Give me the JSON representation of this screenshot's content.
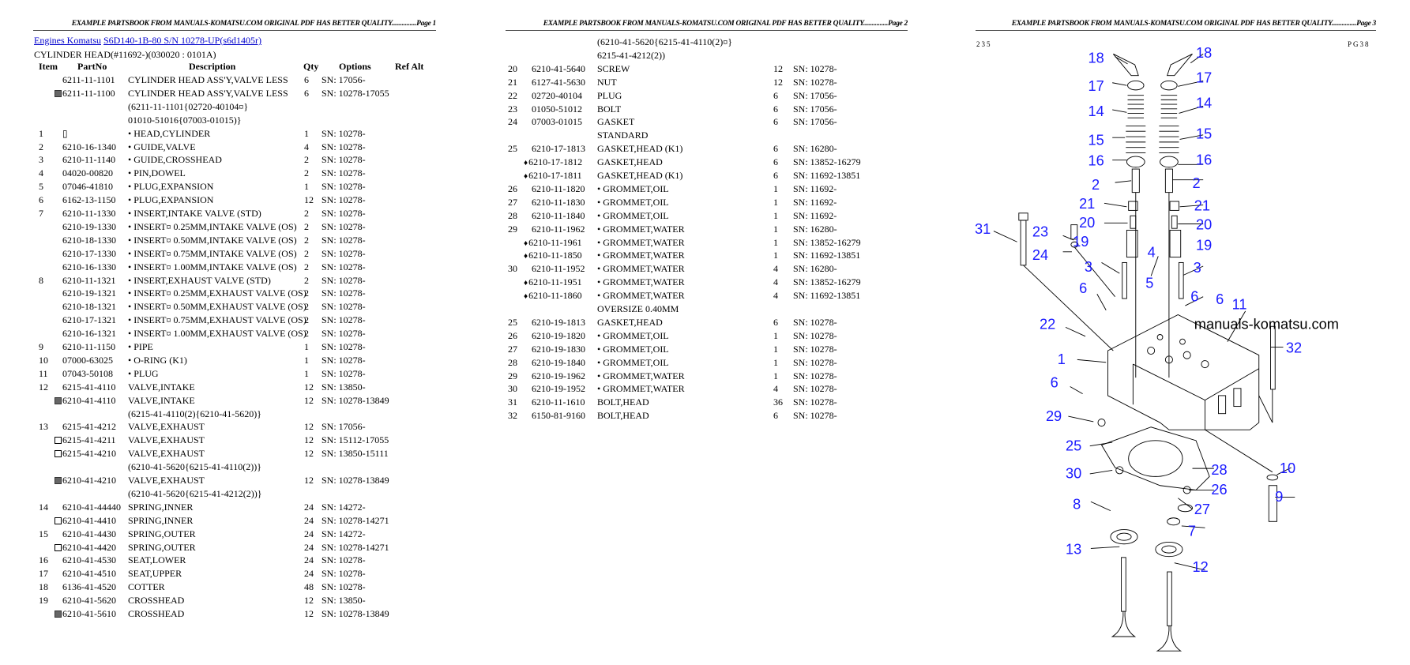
{
  "page_header_text": "EXAMPLE PARTSBOOK FROM MANUALS-KOMATSU.COM ORIGINAL PDF HAS BETTER QUALITY...............",
  "pages": [
    {
      "label": "Page 1"
    },
    {
      "label": "Page 2"
    },
    {
      "label": "Page 3"
    }
  ],
  "breadcrumb": {
    "link1": "Engines Komatsu",
    "link2": "S6D140-1B-80 S/N 10278-UP(s6d1405r)"
  },
  "section_title": "CYLINDER HEAD(#11692-)(030020 : 0101A)",
  "columns": {
    "item": "Item",
    "partno": "PartNo",
    "description": "Description",
    "qty": "Qty",
    "options": "Options",
    "refalt": "Ref Alt"
  },
  "page1_rows": [
    [
      "",
      "",
      "6211-11-1101",
      "CYLINDER HEAD ASS'Y,VALVE LESS",
      "6",
      "SN: 17056-"
    ],
    [
      "",
      "shaded",
      "6211-11-1100",
      "CYLINDER HEAD ASS'Y,VALVE LESS",
      "6",
      "SN: 10278-17055"
    ],
    [
      "",
      "",
      "",
      "(6211-11-1101{02720-40104¤}",
      "",
      ""
    ],
    [
      "",
      "",
      "",
      "01010-51016{07003-01015)}",
      "",
      ""
    ],
    [
      "1",
      "",
      "▯",
      "• HEAD,CYLINDER",
      "1",
      "SN: 10278-"
    ],
    [
      "2",
      "",
      "6210-16-1340",
      "• GUIDE,VALVE",
      "4",
      "SN: 10278-"
    ],
    [
      "3",
      "",
      "6210-11-1140",
      "• GUIDE,CROSSHEAD",
      "2",
      "SN: 10278-"
    ],
    [
      "4",
      "",
      "04020-00820",
      "• PIN,DOWEL",
      "2",
      "SN: 10278-"
    ],
    [
      "5",
      "",
      "07046-41810",
      "• PLUG,EXPANSION",
      "1",
      "SN: 10278-"
    ],
    [
      "6",
      "",
      "6162-13-1150",
      "• PLUG,EXPANSION",
      "12",
      "SN: 10278-"
    ],
    [
      "7",
      "",
      "6210-11-1330",
      "• INSERT,INTAKE VALVE (STD)",
      "2",
      "SN: 10278-"
    ],
    [
      "",
      "",
      "6210-19-1330",
      "• INSERT¤ 0.25MM,INTAKE VALVE (OS)",
      "2",
      "SN: 10278-"
    ],
    [
      "",
      "",
      "6210-18-1330",
      "• INSERT¤ 0.50MM,INTAKE VALVE (OS)",
      "2",
      "SN: 10278-"
    ],
    [
      "",
      "",
      "6210-17-1330",
      "• INSERT¤ 0.75MM,INTAKE VALVE (OS)",
      "2",
      "SN: 10278-"
    ],
    [
      "",
      "",
      "6210-16-1330",
      "• INSERT¤ 1.00MM,INTAKE VALVE (OS)",
      "2",
      "SN: 10278-"
    ],
    [
      "8",
      "",
      "6210-11-1321",
      "• INSERT,EXHAUST VALVE (STD)",
      "2",
      "SN: 10278-"
    ],
    [
      "",
      "",
      "6210-19-1321",
      "• INSERT¤ 0.25MM,EXHAUST VALVE (OS)",
      "2",
      "SN: 10278-"
    ],
    [
      "",
      "",
      "6210-18-1321",
      "• INSERT¤ 0.50MM,EXHAUST VALVE (OS)",
      "2",
      "SN: 10278-"
    ],
    [
      "",
      "",
      "6210-17-1321",
      "• INSERT¤ 0.75MM,EXHAUST VALVE (OS)",
      "2",
      "SN: 10278-"
    ],
    [
      "",
      "",
      "6210-16-1321",
      "• INSERT¤ 1.00MM,EXHAUST VALVE (OS)",
      "2",
      "SN: 10278-"
    ],
    [
      "9",
      "",
      "6210-11-1150",
      "• PIPE",
      "1",
      "SN: 10278-"
    ],
    [
      "10",
      "",
      "07000-63025",
      "• O-RING (K1)",
      "1",
      "SN: 10278-"
    ],
    [
      "11",
      "",
      "07043-50108",
      "• PLUG",
      "1",
      "SN: 10278-"
    ],
    [
      "12",
      "",
      "6215-41-4110",
      "VALVE,INTAKE",
      "12",
      "SN: 13850-"
    ],
    [
      "",
      "shaded",
      "6210-41-4110",
      "VALVE,INTAKE",
      "12",
      "SN: 10278-13849"
    ],
    [
      "",
      "",
      "",
      "(6215-41-4110(2){6210-41-5620)}",
      "",
      ""
    ],
    [
      "13",
      "",
      "6215-41-4212",
      "VALVE,EXHAUST",
      "12",
      "SN: 17056-"
    ],
    [
      "",
      "new",
      "6215-41-4211",
      "VALVE,EXHAUST",
      "12",
      "SN: 15112-17055"
    ],
    [
      "",
      "new",
      "6215-41-4210",
      "VALVE,EXHAUST",
      "12",
      "SN: 13850-15111"
    ],
    [
      "",
      "",
      "",
      "(6210-41-5620{6215-41-4110(2))}",
      "",
      ""
    ],
    [
      "",
      "shaded",
      "6210-41-4210",
      "VALVE,EXHAUST",
      "12",
      "SN: 10278-13849"
    ],
    [
      "",
      "",
      "",
      "(6210-41-5620{6215-41-4212(2))}",
      "",
      ""
    ],
    [
      "14",
      "",
      "6210-41-44440",
      "SPRING,INNER",
      "24",
      "SN: 14272-"
    ],
    [
      "",
      "new",
      "6210-41-4410",
      "SPRING,INNER",
      "24",
      "SN: 10278-14271"
    ],
    [
      "15",
      "",
      "6210-41-4430",
      "SPRING,OUTER",
      "24",
      "SN: 14272-"
    ],
    [
      "",
      "new",
      "6210-41-4420",
      "SPRING,OUTER",
      "24",
      "SN: 10278-14271"
    ],
    [
      "16",
      "",
      "6210-41-4530",
      "SEAT,LOWER",
      "24",
      "SN: 10278-"
    ],
    [
      "17",
      "",
      "6210-41-4510",
      "SEAT,UPPER",
      "24",
      "SN: 10278-"
    ],
    [
      "18",
      "",
      "6136-41-4520",
      "COTTER",
      "48",
      "SN: 10278-"
    ],
    [
      "19",
      "",
      "6210-41-5620",
      "CROSSHEAD",
      "12",
      "SN: 13850-"
    ],
    [
      "",
      "shaded",
      "6210-41-5610",
      "CROSSHEAD",
      "12",
      "SN: 10278-13849"
    ]
  ],
  "page2_rows": [
    [
      "",
      "",
      "",
      "(6210-41-5620{6215-41-4110(2)¤}",
      "",
      ""
    ],
    [
      "",
      "",
      "",
      "6215-41-4212(2))",
      "",
      ""
    ],
    [
      "20",
      "",
      "6210-41-5640",
      "SCREW",
      "12",
      "SN: 10278-"
    ],
    [
      "21",
      "",
      "6127-41-5630",
      "NUT",
      "12",
      "SN: 10278-"
    ],
    [
      "22",
      "",
      "02720-40104",
      "PLUG",
      "6",
      "SN: 17056-"
    ],
    [
      "23",
      "",
      "01050-51012",
      "BOLT",
      "6",
      "SN: 17056-"
    ],
    [
      "24",
      "",
      "07003-01015",
      "GASKET",
      "6",
      "SN: 17056-"
    ],
    [
      "",
      "",
      "",
      "STANDARD",
      "",
      ""
    ],
    [
      "25",
      "",
      "6210-17-1813",
      "GASKET,HEAD (K1)",
      "6",
      "SN: 16280-"
    ],
    [
      "",
      "diamond",
      "6210-17-1812",
      "GASKET,HEAD",
      "6",
      "SN: 13852-16279"
    ],
    [
      "",
      "diamond",
      "6210-17-1811",
      "GASKET,HEAD (K1)",
      "6",
      "SN: 11692-13851"
    ],
    [
      "26",
      "",
      "6210-11-1820",
      "• GROMMET,OIL",
      "1",
      "SN: 11692-"
    ],
    [
      "27",
      "",
      "6210-11-1830",
      "• GROMMET,OIL",
      "1",
      "SN: 11692-"
    ],
    [
      "28",
      "",
      "6210-11-1840",
      "• GROMMET,OIL",
      "1",
      "SN: 11692-"
    ],
    [
      "29",
      "",
      "6210-11-1962",
      "• GROMMET,WATER",
      "1",
      "SN: 16280-"
    ],
    [
      "",
      "diamond",
      "6210-11-1961",
      "• GROMMET,WATER",
      "1",
      "SN: 13852-16279"
    ],
    [
      "",
      "diamond",
      "6210-11-1850",
      "• GROMMET,WATER",
      "1",
      "SN: 11692-13851"
    ],
    [
      "30",
      "",
      "6210-11-1952",
      "• GROMMET,WATER",
      "4",
      "SN: 16280-"
    ],
    [
      "",
      "diamond",
      "6210-11-1951",
      "• GROMMET,WATER",
      "4",
      "SN: 13852-16279"
    ],
    [
      "",
      "diamond",
      "6210-11-1860",
      "• GROMMET,WATER",
      "4",
      "SN: 11692-13851"
    ],
    [
      "",
      "",
      "",
      "OVERSIZE 0.40MM",
      "",
      ""
    ],
    [
      "25",
      "",
      "6210-19-1813",
      "GASKET,HEAD",
      "6",
      "SN: 10278-"
    ],
    [
      "26",
      "",
      "6210-19-1820",
      "• GROMMET,OIL",
      "1",
      "SN: 10278-"
    ],
    [
      "27",
      "",
      "6210-19-1830",
      "• GROMMET,OIL",
      "1",
      "SN: 10278-"
    ],
    [
      "28",
      "",
      "6210-19-1840",
      "• GROMMET,OIL",
      "1",
      "SN: 10278-"
    ],
    [
      "29",
      "",
      "6210-19-1962",
      "• GROMMET,WATER",
      "1",
      "SN: 10278-"
    ],
    [
      "30",
      "",
      "6210-19-1952",
      "• GROMMET,WATER",
      "4",
      "SN: 10278-"
    ],
    [
      "31",
      "",
      "6210-11-1610",
      "BOLT,HEAD",
      "36",
      "SN: 10278-"
    ],
    [
      "32",
      "",
      "6150-81-9160",
      "BOLT,HEAD",
      "6",
      "SN: 10278-"
    ]
  ],
  "diagram": {
    "page_code_left": "235",
    "page_code_right": "PG38",
    "watermark": "manuals-komatsu.com",
    "callout_color": "#1a1aff",
    "callouts": [
      "18",
      "18",
      "17",
      "17",
      "14",
      "14",
      "15",
      "15",
      "16",
      "16",
      "2",
      "2",
      "21",
      "21",
      "20",
      "20",
      "31",
      "23",
      "19",
      "19",
      "24",
      "4",
      "3",
      "3",
      "5",
      "6",
      "6",
      "6",
      "11",
      "22",
      "32",
      "1",
      "6",
      "29",
      "25",
      "30",
      "28",
      "10",
      "26",
      "9",
      "8",
      "27",
      "7",
      "13",
      "12"
    ]
  }
}
